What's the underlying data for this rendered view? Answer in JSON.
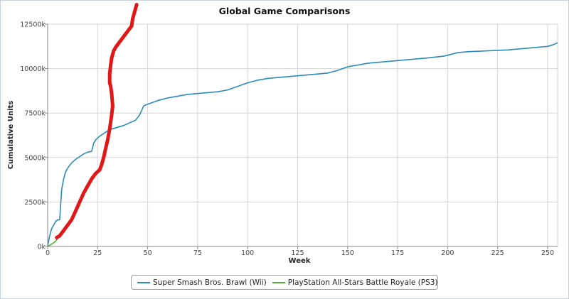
{
  "chart_data": {
    "type": "line",
    "title": "Global Game Comparisons",
    "xlabel": "Week",
    "ylabel": "Cumulative Units",
    "xlim": [
      0,
      255
    ],
    "ylim": [
      0,
      12500
    ],
    "x_ticks": [
      0,
      25,
      50,
      75,
      100,
      125,
      150,
      175,
      200,
      225,
      250
    ],
    "y_ticks": [
      {
        "value": 0,
        "label": "0k"
      },
      {
        "value": 2500,
        "label": "2500k"
      },
      {
        "value": 5000,
        "label": "5000k"
      },
      {
        "value": 7500,
        "label": "7500k"
      },
      {
        "value": 10000,
        "label": "10000k"
      },
      {
        "value": 12500,
        "label": "12500k"
      }
    ],
    "grid": true,
    "legend_position": "bottom-center",
    "series": [
      {
        "name": "Super Smash Bros. Brawl (Wii)",
        "color": "#2b8bb8",
        "x": [
          0,
          1,
          2,
          3,
          4,
          5,
          6,
          7,
          8,
          9,
          10,
          12,
          14,
          16,
          18,
          20,
          22,
          23,
          24,
          26,
          28,
          30,
          32,
          35,
          38,
          40,
          42,
          44,
          46,
          48,
          50,
          55,
          60,
          65,
          70,
          75,
          80,
          85,
          90,
          95,
          100,
          105,
          110,
          120,
          130,
          140,
          145,
          150,
          160,
          170,
          180,
          190,
          198,
          200,
          205,
          210,
          220,
          230,
          240,
          250,
          253,
          255
        ],
        "y": [
          0,
          600,
          1000,
          1200,
          1400,
          1500,
          1500,
          3200,
          3800,
          4200,
          4400,
          4700,
          4900,
          5050,
          5200,
          5300,
          5350,
          5800,
          6000,
          6200,
          6350,
          6500,
          6600,
          6700,
          6800,
          6900,
          7000,
          7100,
          7400,
          7900,
          8000,
          8200,
          8350,
          8450,
          8550,
          8600,
          8650,
          8700,
          8800,
          9000,
          9200,
          9350,
          9450,
          9550,
          9650,
          9750,
          9900,
          10100,
          10300,
          10400,
          10500,
          10600,
          10700,
          10750,
          10900,
          10950,
          11000,
          11050,
          11150,
          11250,
          11350,
          11450
        ]
      },
      {
        "name": "PlayStation All-Stars Battle Royale (PS3)",
        "color": "#5aaa3c",
        "x": [
          0,
          1,
          2,
          3,
          4,
          5
        ],
        "y": [
          0,
          60,
          130,
          200,
          300,
          450
        ]
      }
    ],
    "annotations": [
      {
        "type": "freehand_stroke",
        "color": "#e21818",
        "x": [
          4.5,
          6,
          8,
          10,
          12,
          14,
          16,
          18,
          20,
          22,
          24,
          26,
          27,
          28,
          29,
          30,
          31,
          32,
          32.5,
          32,
          31.5,
          31,
          31,
          31.5,
          32,
          33,
          34,
          36,
          38,
          40,
          42,
          42.5,
          43.5,
          44.5
        ],
        "y": [
          500,
          600,
          900,
          1200,
          1500,
          2000,
          2500,
          3000,
          3400,
          3800,
          4100,
          4300,
          4600,
          5000,
          5500,
          6000,
          6600,
          7400,
          7900,
          8600,
          9000,
          9200,
          9700,
          10200,
          10600,
          11000,
          11200,
          11500,
          11800,
          12100,
          12400,
          12800,
          13200,
          13600
        ]
      }
    ]
  },
  "legend": {
    "items": [
      {
        "label": "Super Smash Bros. Brawl (Wii)",
        "color": "#2b8bb8"
      },
      {
        "label": "PlayStation All-Stars Battle Royale (PS3)",
        "color": "#5aaa3c"
      }
    ]
  }
}
